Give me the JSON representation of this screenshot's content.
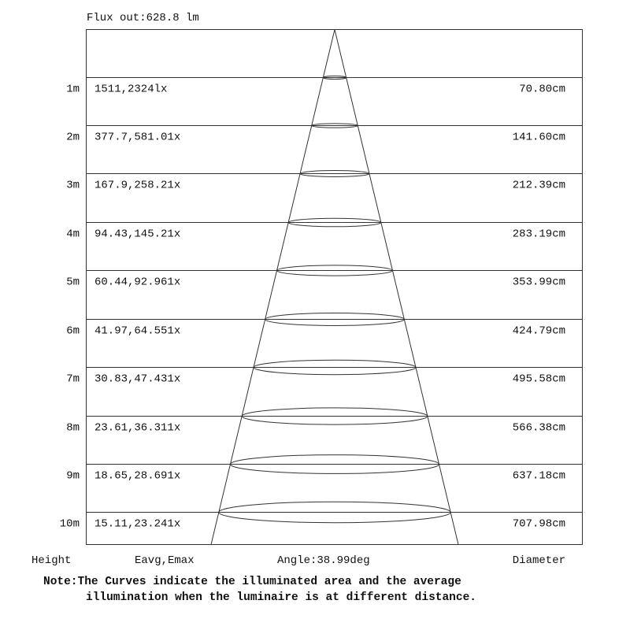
{
  "flux": "Flux out:628.8 lm",
  "rows": [
    {
      "height": "1m",
      "illum": "1511,2324lx",
      "diameter": "70.80cm"
    },
    {
      "height": "2m",
      "illum": "377.7,581.01x",
      "diameter": "141.60cm"
    },
    {
      "height": "3m",
      "illum": "167.9,258.21x",
      "diameter": "212.39cm"
    },
    {
      "height": "4m",
      "illum": "94.43,145.21x",
      "diameter": "283.19cm"
    },
    {
      "height": "5m",
      "illum": "60.44,92.961x",
      "diameter": "353.99cm"
    },
    {
      "height": "6m",
      "illum": "41.97,64.551x",
      "diameter": "424.79cm"
    },
    {
      "height": "7m",
      "illum": "30.83,47.431x",
      "diameter": "495.58cm"
    },
    {
      "height": "8m",
      "illum": "23.61,36.311x",
      "diameter": "566.38cm"
    },
    {
      "height": "9m",
      "illum": "18.65,28.691x",
      "diameter": "637.18cm"
    },
    {
      "height": "10m",
      "illum": "15.11,23.241x",
      "diameter": "707.98cm"
    }
  ],
  "footer": {
    "height": "Height",
    "eavg": "Eavg,Emax",
    "angle": "Angle:38.99deg",
    "diameter": "Diameter"
  },
  "note": {
    "line1": "Note:The Curves indicate the illuminated area and the average",
    "line2": "illumination when the luminaire is at different distance."
  }
}
